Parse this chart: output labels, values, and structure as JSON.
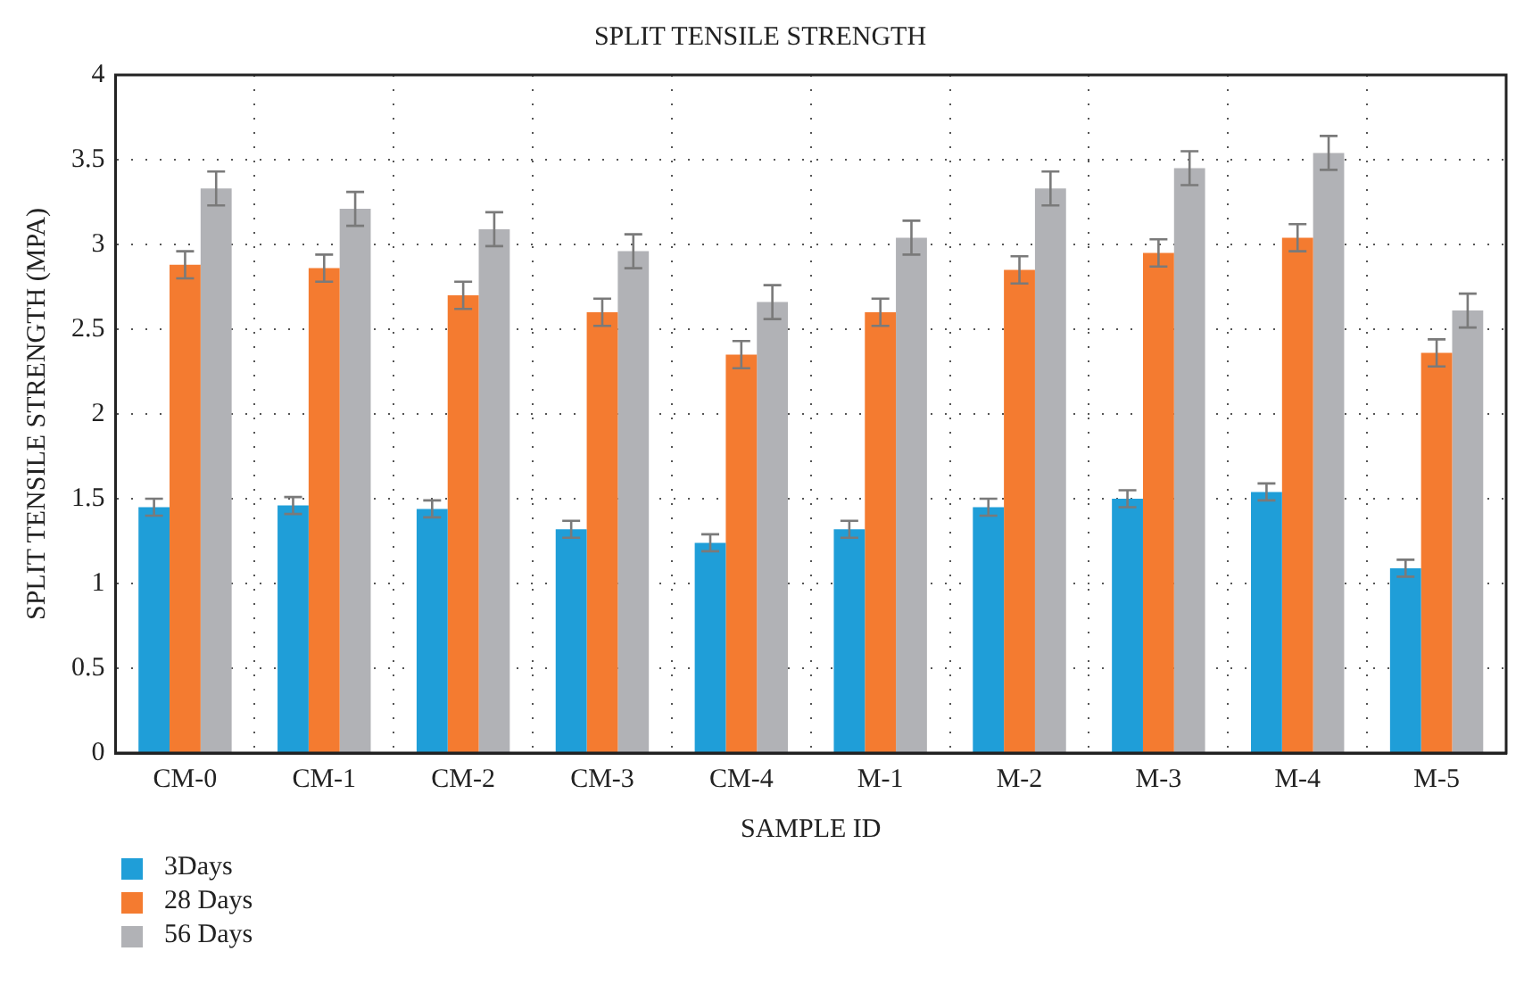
{
  "chart_data": {
    "type": "bar",
    "title": "SPLIT TENSILE STRENGTH",
    "xlabel": "SAMPLE ID",
    "ylabel": "SPLIT TENSILE STRENGTH (MPA)",
    "categories": [
      "CM-0",
      "CM-1",
      "CM-2",
      "CM-3",
      "CM-4",
      "M-1",
      "M-2",
      "M-3",
      "M-4",
      "M-5"
    ],
    "series": [
      {
        "name": "3Days",
        "color": "#1f9ed8",
        "values": [
          1.45,
          1.46,
          1.44,
          1.32,
          1.24,
          1.32,
          1.45,
          1.5,
          1.54,
          1.09
        ],
        "errors": [
          0.05,
          0.05,
          0.05,
          0.05,
          0.05,
          0.05,
          0.05,
          0.05,
          0.05,
          0.05
        ]
      },
      {
        "name": "28 Days",
        "color": "#f47b30",
        "values": [
          2.88,
          2.86,
          2.7,
          2.6,
          2.35,
          2.6,
          2.85,
          2.95,
          3.04,
          2.36
        ],
        "errors": [
          0.08,
          0.08,
          0.08,
          0.08,
          0.08,
          0.08,
          0.08,
          0.08,
          0.08,
          0.08
        ]
      },
      {
        "name": "56 Days",
        "color": "#b1b2b6",
        "values": [
          3.33,
          3.21,
          3.09,
          2.96,
          2.66,
          3.04,
          3.33,
          3.45,
          3.54,
          2.61
        ],
        "errors": [
          0.1,
          0.1,
          0.1,
          0.1,
          0.1,
          0.1,
          0.1,
          0.1,
          0.1,
          0.1
        ]
      }
    ],
    "ylim": [
      0,
      4
    ],
    "yticks": [
      0,
      0.5,
      1,
      1.5,
      2,
      2.5,
      3,
      3.5,
      4
    ],
    "grid": true,
    "legend": "bottom left"
  }
}
